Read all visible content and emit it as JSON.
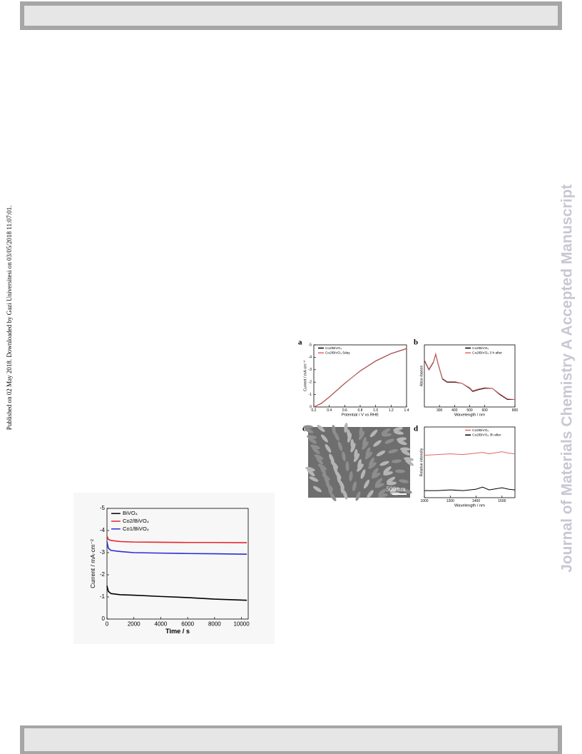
{
  "side_note": "Published on 02 May 2018. Downloaded by Gazi Universitesi on 03/05/2018 11:07:01.",
  "watermark": "Journal of Materials Chemistry A Accepted Manuscript",
  "figures": [
    {
      "label": "a",
      "chart_data": {
        "type": "line",
        "xlabel": "Potential / V vs RHE",
        "ylabel": "Current / mA·cm⁻²",
        "x": [
          0.2,
          0.3,
          0.4,
          0.6,
          0.8,
          1.0,
          1.2,
          1.4
        ],
        "series": [
          {
            "name": "Co2/BiVO₄",
            "color": "#000000",
            "values": [
              0,
              -0.3,
              -0.8,
              -1.9,
              -2.9,
              -3.7,
              -4.3,
              -4.7
            ]
          },
          {
            "name": "Co2/BiVO₄ 5day",
            "color": "#e06666",
            "values": [
              0,
              -0.32,
              -0.82,
              -1.92,
              -2.88,
              -3.68,
              -4.28,
              -4.68
            ]
          }
        ],
        "xlim": [
          0.2,
          1.4
        ],
        "xticks": [
          0.2,
          0.4,
          0.6,
          0.8,
          {
            "value": 1,
            "label": "1.0"
          },
          1.2,
          1.4
        ],
        "ylim": [
          0,
          -5
        ],
        "yticks": [
          0,
          -1,
          -2,
          -3,
          -4,
          -5
        ],
        "legend": "upper left"
      }
    },
    {
      "label": "b",
      "chart_data": {
        "type": "line",
        "xlabel": "Wavelength / nm",
        "ylabel": "Abso rbance",
        "x": [
          200,
          230,
          260,
          275,
          290,
          320,
          350,
          400,
          450,
          500,
          520,
          560,
          600,
          650,
          700,
          750,
          800
        ],
        "series": [
          {
            "name": "Co2/BiVO₄",
            "color": "#000000",
            "values": [
              0.75,
              0.6,
              0.72,
              0.85,
              0.7,
              0.45,
              0.4,
              0.4,
              0.38,
              0.3,
              0.25,
              0.28,
              0.3,
              0.3,
              0.2,
              0.12,
              0.12
            ]
          },
          {
            "name": "Co2/BiVO₄ 3 h after",
            "color": "#e06666",
            "values": [
              0.76,
              0.61,
              0.73,
              0.86,
              0.71,
              0.46,
              0.41,
              0.41,
              0.38,
              0.31,
              0.26,
              0.29,
              0.31,
              0.3,
              0.21,
              0.13,
              0.12
            ]
          }
        ],
        "xlim": [
          200,
          800
        ],
        "xticks": [
          300,
          400,
          500,
          600,
          800
        ],
        "ylim": [
          0,
          1
        ],
        "yticks": [],
        "legend": "upper right"
      }
    },
    {
      "label": "c",
      "scale_bar": "500 nm"
    },
    {
      "label": "d",
      "chart_data": {
        "type": "line",
        "xlabel": "Wavelength / nm",
        "ylabel": "Relative intensity",
        "x": [
          1000,
          1100,
          1200,
          1300,
          1400,
          1450,
          1500,
          1600,
          1650,
          1700
        ],
        "series": [
          {
            "name": "Co2/BiVO₄",
            "color": "#e06666",
            "values": [
              0.6,
              0.61,
              0.62,
              0.61,
              0.63,
              0.64,
              0.62,
              0.65,
              0.63,
              0.62
            ]
          },
          {
            "name": "Co2/BiVO₄ 3h after",
            "color": "#000000",
            "values": [
              0.1,
              0.1,
              0.11,
              0.1,
              0.12,
              0.15,
              0.11,
              0.14,
              0.12,
              0.11
            ]
          }
        ],
        "xlim": [
          1000,
          1700
        ],
        "xticks": [
          1000,
          1200,
          1400,
          1600
        ],
        "ylim": [
          0,
          1
        ],
        "yticks": [],
        "legend": "upper right"
      }
    }
  ],
  "main_figure": {
    "chart_data": {
      "type": "line",
      "xlabel": "Time / s",
      "ylabel": "Current / mA·cm⁻²",
      "x": [
        0,
        100,
        300,
        1000,
        2000,
        4000,
        6000,
        8000,
        10400
      ],
      "series": [
        {
          "name": "BiVO₄",
          "color": "#000000",
          "values": [
            -1.5,
            -1.25,
            -1.15,
            -1.1,
            -1.08,
            -1.02,
            -0.97,
            -0.9,
            -0.85
          ]
        },
        {
          "name": "Co2/BiVO₄",
          "color": "#e8232a",
          "values": [
            -3.75,
            -3.6,
            -3.55,
            -3.5,
            -3.48,
            -3.47,
            -3.46,
            -3.46,
            -3.45
          ]
        },
        {
          "name": "Co1/BiVO₄",
          "color": "#2b2bd9",
          "values": [
            -3.5,
            -3.2,
            -3.1,
            -3.05,
            -3.0,
            -2.98,
            -2.96,
            -2.95,
            -2.93
          ]
        }
      ],
      "xlim": [
        0,
        10500
      ],
      "xticks": [
        0,
        2000,
        4000,
        6000,
        8000,
        10000
      ],
      "ylim": [
        0,
        -5
      ],
      "yticks": [
        0,
        -1,
        -2,
        -3,
        -4,
        -5
      ],
      "legend": "upper left"
    }
  }
}
